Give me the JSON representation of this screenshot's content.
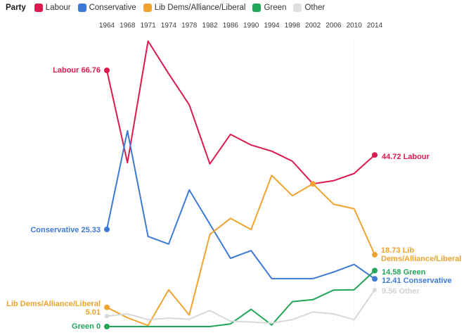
{
  "legend": {
    "title": "Party",
    "items": [
      {
        "label": "Labour",
        "color": "#dc1a4e"
      },
      {
        "label": "Conservative",
        "color": "#3d7ad6"
      },
      {
        "label": "Lib Dems/Alliance/Liberal",
        "color": "#f0a32e"
      },
      {
        "label": "Green",
        "color": "#21a659"
      },
      {
        "label": "Other",
        "color": "#e0e0e0"
      }
    ]
  },
  "annotations": {
    "labour_left": "Labour 66.76",
    "conservative_left": "Conservative 25.33",
    "libdem_left_line1": "Lib Dems/Alliance/Liberal",
    "libdem_left_line2": "5.01",
    "green_left": "Green 0",
    "labour_right": "44.72 Labour",
    "libdem_right": "18.73 Lib Dems/Alliance/Liberal",
    "green_right": "14.58 Green",
    "conservative_right": "12.41 Conservative",
    "other_right": "9.56 Other"
  },
  "chart_data": {
    "type": "line",
    "title": "",
    "xlabel": "",
    "ylabel": "",
    "x": [
      "1964",
      "1968",
      "1971",
      "1974",
      "1978",
      "1982",
      "1986",
      "1990",
      "1994",
      "1998",
      "2002",
      "2006",
      "2010",
      "2014"
    ],
    "ylim": [
      0,
      75
    ],
    "grid": "vertical-dotted",
    "legend_position": "top-left",
    "series": [
      {
        "name": "Labour",
        "color": "#dc1a4e",
        "values": [
          66.76,
          42.7,
          74.4,
          65.9,
          57.8,
          42.4,
          50.1,
          47.3,
          45.7,
          43.1,
          37.2,
          38.0,
          39.9,
          44.72
        ],
        "marker_indices": [
          0,
          13
        ],
        "marker_radius": 4
      },
      {
        "name": "Conservative",
        "color": "#3d7ad6",
        "values": [
          25.33,
          51.0,
          23.5,
          21.5,
          35.6,
          26.7,
          17.8,
          19.8,
          12.5,
          12.5,
          12.5,
          14.2,
          16.2,
          12.41
        ],
        "marker_indices": [
          0,
          13
        ],
        "marker_radius": 4
      },
      {
        "name": "Lib Dems/Alliance/Liberal",
        "color": "#f0a32e",
        "values": [
          5.01,
          2.3,
          0.3,
          9.6,
          3.0,
          24.0,
          28.2,
          25.3,
          39.4,
          34.1,
          37.2,
          31.9,
          30.7,
          18.73
        ],
        "marker_indices": [
          0,
          10,
          13
        ],
        "marker_radius": 4
      },
      {
        "name": "Green",
        "color": "#21a659",
        "values": [
          0,
          0,
          0,
          0,
          0,
          0,
          0.7,
          4.5,
          0.4,
          6.5,
          7.0,
          9.5,
          9.6,
          14.58
        ],
        "marker_indices": [
          0,
          13
        ],
        "marker_radius": 4
      },
      {
        "name": "Other",
        "color": "#d8d8d8",
        "values": [
          2.7,
          3.3,
          1.8,
          2.2,
          1.9,
          4.2,
          1.4,
          1.2,
          0.9,
          1.8,
          3.8,
          3.3,
          1.8,
          9.56
        ],
        "marker_indices": [
          0,
          13
        ],
        "marker_radius": 3
      }
    ]
  },
  "colors": {
    "labour": "#dc1a4e",
    "conservative": "#3d7ad6",
    "libdem": "#f0a32e",
    "green": "#21a659",
    "other_line": "#d8d8d8",
    "other_label": "#d2d2d2",
    "gridline": "#e6e6e6",
    "year_label": "#3d3d3d"
  }
}
